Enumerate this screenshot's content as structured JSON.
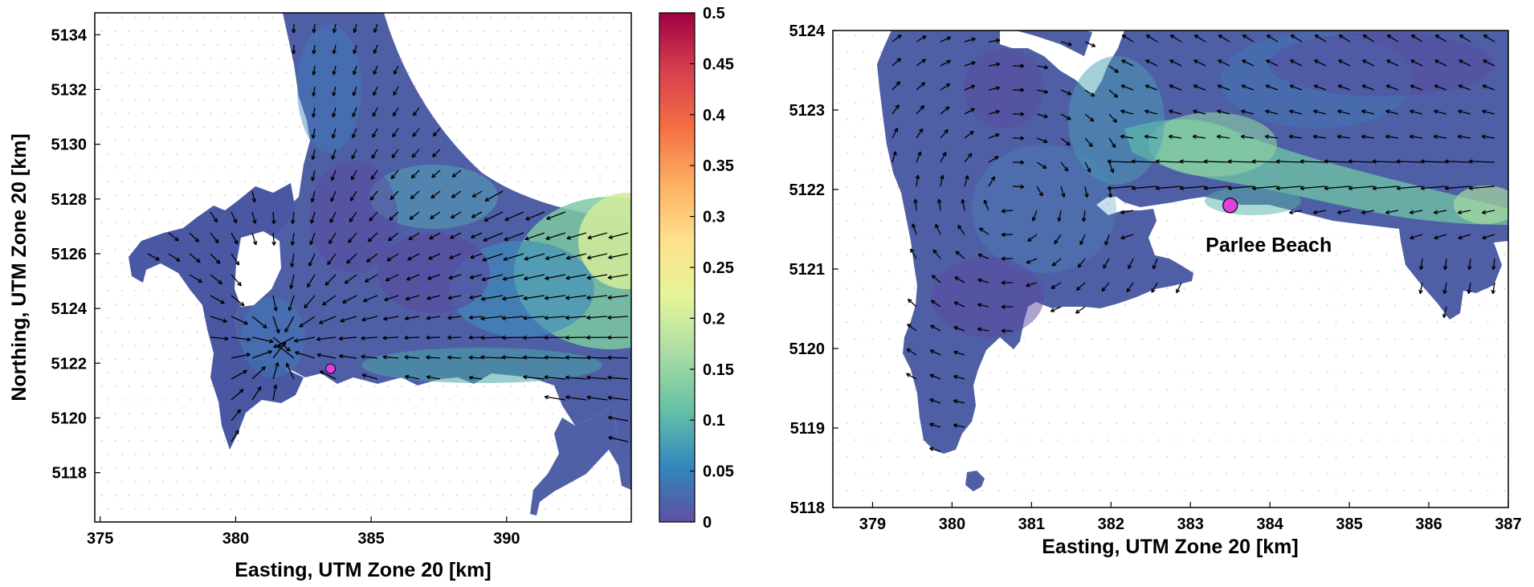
{
  "chart_data": [
    {
      "type": "heatmap",
      "panel": "left",
      "title": "",
      "xlabel": "Easting, UTM Zone 20 [km]",
      "ylabel": "Northing, UTM Zone 20 [km]",
      "xlim": [
        374.8,
        394.6
      ],
      "ylim": [
        5116.2,
        5134.8
      ],
      "xticks": [
        375,
        380,
        385,
        390
      ],
      "yticks": [
        5118,
        5120,
        5122,
        5124,
        5126,
        5128,
        5130,
        5132,
        5134
      ],
      "grid": false,
      "overlay": "current velocity vectors (quiver)",
      "marker": {
        "x": 383.5,
        "y": 5121.8,
        "color": "#e040e0"
      },
      "colorbar": {
        "min": 0,
        "max": 0.5,
        "ticks": [
          0,
          0.05,
          0.1,
          0.15,
          0.2,
          0.25,
          0.3,
          0.35,
          0.4,
          0.45,
          0.5
        ],
        "tick_labels": [
          "0",
          "0.05",
          "0.1",
          "0.15",
          "0.2",
          "0.25",
          "0.3",
          "0.35",
          "0.4",
          "0.45",
          "0.5"
        ],
        "colormap": "spectral",
        "colors": [
          "#5e4fa2",
          "#3288bd",
          "#66c2a5",
          "#abdda4",
          "#e6f598",
          "#fee08b",
          "#fdae61",
          "#f46d43",
          "#d53e4f",
          "#9e0142"
        ]
      }
    },
    {
      "type": "heatmap",
      "panel": "right",
      "title": "",
      "xlabel": "Easting, UTM Zone 20 [km]",
      "ylabel": "",
      "xlim": [
        378.5,
        387
      ],
      "ylim": [
        5118,
        5124
      ],
      "xticks": [
        379,
        380,
        381,
        382,
        383,
        384,
        385,
        386,
        387
      ],
      "yticks": [
        5118,
        5119,
        5120,
        5121,
        5122,
        5123,
        5124
      ],
      "grid": false,
      "overlay": "current velocity vectors (quiver)",
      "marker": {
        "x": 383.5,
        "y": 5121.8,
        "color": "#e040e0"
      },
      "annotation": {
        "text": "Parlee Beach",
        "x": 383.5,
        "y": 5121.3
      }
    }
  ]
}
